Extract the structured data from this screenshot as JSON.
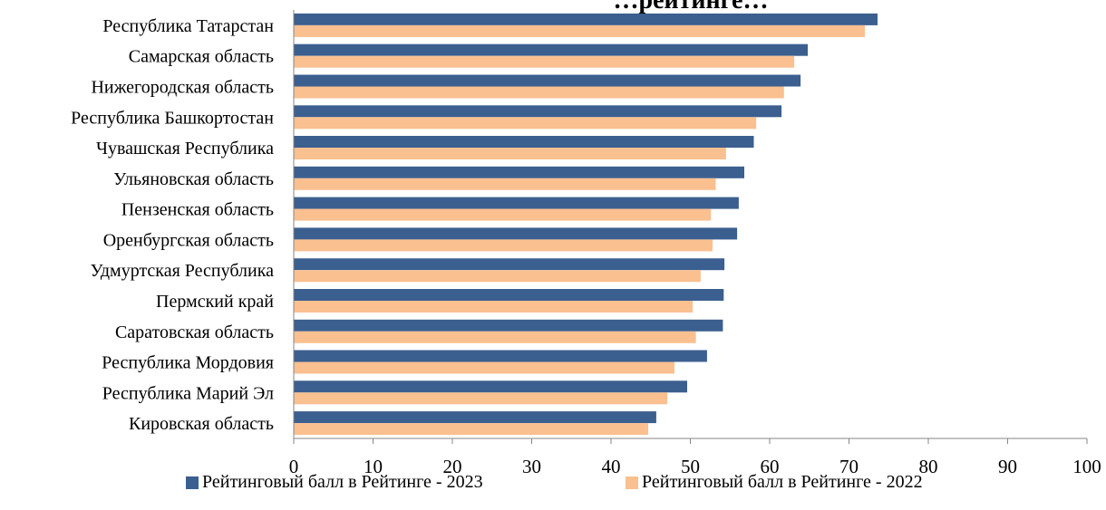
{
  "chart_data": {
    "type": "bar",
    "orientation": "horizontal",
    "title": "…рейтинге…",
    "categories": [
      "Республика Татарстан",
      "Самарская область",
      "Нижегородская область",
      "Республика Башкортостан",
      "Чувашская Республика",
      "Ульяновская область",
      "Пензенская область",
      "Оренбургская область",
      "Удмуртская Республика",
      "Пермский край",
      "Саратовская область",
      "Республика Мордовия",
      "Республика Марий Эл",
      "Кировская область"
    ],
    "series": [
      {
        "name": "Рейтинговый балл в Рейтинге - 2023",
        "color": "#3B5F8F",
        "values": [
          73.6,
          64.8,
          63.9,
          61.5,
          58.0,
          56.8,
          56.1,
          55.9,
          54.3,
          54.2,
          54.1,
          52.1,
          49.6,
          45.7
        ]
      },
      {
        "name": "Рейтинговый балл в Рейтинге - 2022",
        "color": "#FAC090",
        "values": [
          72.0,
          63.1,
          61.8,
          58.3,
          54.5,
          53.2,
          52.6,
          52.8,
          51.3,
          50.3,
          50.7,
          48.0,
          47.1,
          44.7
        ]
      }
    ],
    "xlim": [
      0,
      100
    ],
    "xticks": [
      "0",
      "10",
      "20",
      "30",
      "40",
      "50",
      "60",
      "70",
      "80",
      "90",
      "100"
    ],
    "grid": false,
    "legend_position": "bottom"
  }
}
